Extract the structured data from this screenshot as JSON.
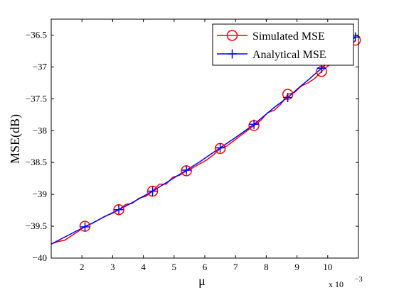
{
  "chart_data": {
    "type": "line",
    "xlabel": "μ",
    "ylabel": "MSE(dB)",
    "x_multiplier_label": "x 10",
    "x_multiplier_exp": "−3",
    "xlim": [
      1.0,
      11.0
    ],
    "ylim": [
      -40,
      -36.25
    ],
    "xticks": [
      2,
      3,
      4,
      5,
      6,
      7,
      8,
      9,
      10
    ],
    "xtick_labels": [
      "2",
      "3",
      "4",
      "5",
      "6",
      "7",
      "8",
      "9",
      "10"
    ],
    "yticks": [
      -40,
      -39.5,
      -39,
      -38.5,
      -38,
      -37.5,
      -37,
      -36.5
    ],
    "ytick_labels": [
      "−40",
      "−39.5",
      "−39",
      "−38.5",
      "−38",
      "−37.5",
      "−37",
      "−36.5"
    ],
    "grid": false,
    "legend_position": "top-right",
    "colors": {
      "simulated": "#ff0000",
      "analytical": "#0000ff"
    },
    "series": [
      {
        "name": "Simulated MSE",
        "marker": "circle",
        "x": [
          1.0,
          1.22,
          1.44,
          1.66,
          1.88,
          2.1,
          2.32,
          2.54,
          2.76,
          2.98,
          3.2,
          3.42,
          3.64,
          3.86,
          4.08,
          4.3,
          4.52,
          4.74,
          4.96,
          5.18,
          5.4,
          5.62,
          5.84,
          6.06,
          6.28,
          6.5,
          6.72,
          6.94,
          7.16,
          7.38,
          7.6,
          7.82,
          8.04,
          8.26,
          8.48,
          8.7,
          8.92,
          9.14,
          9.36,
          9.58,
          9.8,
          10.02,
          10.24,
          10.46,
          10.68,
          10.9
        ],
        "y": [
          -39.78,
          -39.74,
          -39.72,
          -39.65,
          -39.58,
          -39.5,
          -39.46,
          -39.4,
          -39.34,
          -39.3,
          -39.24,
          -39.16,
          -39.14,
          -39.06,
          -39.03,
          -38.95,
          -38.84,
          -38.84,
          -38.73,
          -38.7,
          -38.63,
          -38.58,
          -38.52,
          -38.46,
          -38.38,
          -38.28,
          -38.24,
          -38.16,
          -38.08,
          -38.0,
          -37.92,
          -37.84,
          -37.72,
          -37.68,
          -37.58,
          -37.43,
          -37.4,
          -37.3,
          -37.25,
          -37.18,
          -37.07,
          -36.98,
          -36.93,
          -36.85,
          -36.72,
          -36.58
        ],
        "marker_x": [
          2.1,
          3.2,
          4.3,
          5.4,
          6.5,
          7.6,
          8.7,
          9.8,
          10.9
        ],
        "marker_y": [
          -39.5,
          -39.24,
          -38.95,
          -38.63,
          -38.28,
          -37.92,
          -37.43,
          -37.07,
          -36.58
        ]
      },
      {
        "name": "Analytical MSE",
        "marker": "plus",
        "x": [
          1.0,
          1.4,
          1.8,
          2.1,
          2.5,
          2.9,
          3.2,
          3.6,
          4.0,
          4.3,
          4.7,
          5.0,
          5.4,
          5.8,
          6.1,
          6.5,
          6.9,
          7.2,
          7.6,
          8.0,
          8.3,
          8.7,
          9.1,
          9.4,
          9.8,
          10.2,
          10.5,
          10.9
        ],
        "y": [
          -39.78,
          -39.68,
          -39.58,
          -39.51,
          -39.41,
          -39.31,
          -39.24,
          -39.14,
          -39.03,
          -38.95,
          -38.83,
          -38.74,
          -38.62,
          -38.5,
          -38.4,
          -38.27,
          -38.14,
          -38.04,
          -37.9,
          -37.74,
          -37.62,
          -37.48,
          -37.31,
          -37.19,
          -37.02,
          -36.85,
          -36.72,
          -36.53
        ],
        "marker_x": [
          2.1,
          3.2,
          4.3,
          5.4,
          6.5,
          7.6,
          8.7,
          9.8,
          10.9
        ],
        "marker_y": [
          -39.51,
          -39.24,
          -38.95,
          -38.62,
          -38.27,
          -37.9,
          -37.48,
          -37.02,
          -36.53
        ]
      }
    ]
  }
}
